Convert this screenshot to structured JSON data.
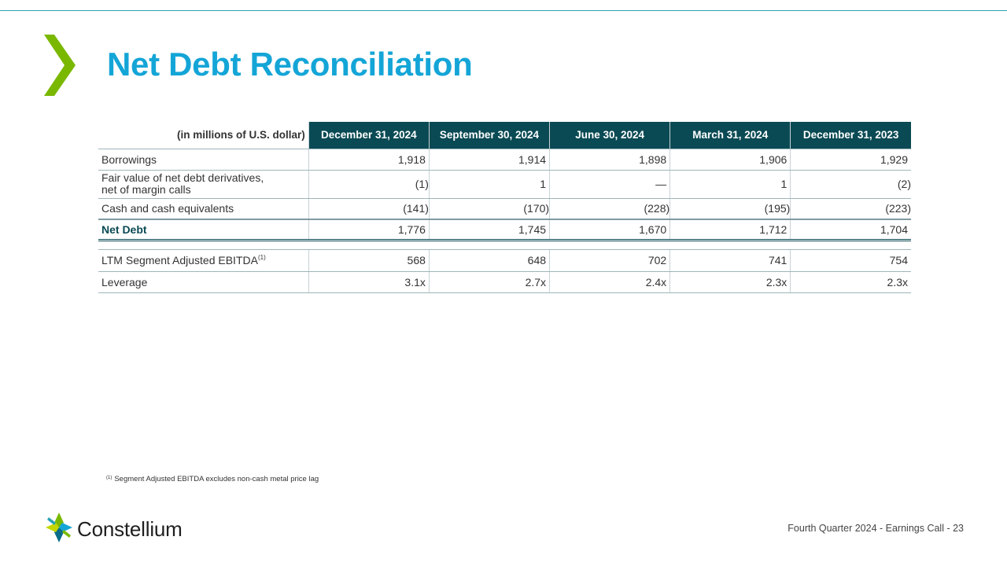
{
  "slide": {
    "title": "Net Debt Reconciliation",
    "accent_color": "#14a5d7",
    "header_fill_color": "#0a4a54",
    "chevron_color": "#7ab800"
  },
  "table": {
    "unit_label": "(in millions of U.S. dollar)",
    "columns": [
      "December 31, 2024",
      "September 30, 2024",
      "June 30, 2024",
      "March 31, 2024",
      "December 31, 2023"
    ],
    "rows": [
      {
        "label": "Borrowings",
        "values": [
          "1,918",
          "1,914",
          "1,898",
          "1,906",
          "1,929"
        ]
      },
      {
        "label_line1": "Fair value of net debt derivatives,",
        "label_line2": "net of margin calls",
        "values": [
          "(1)",
          "1",
          "—",
          "1",
          "(2)"
        ]
      },
      {
        "label": "Cash and cash equivalents",
        "values": [
          "(141)",
          "(170)",
          "(228)",
          "(195)",
          "(223)"
        ]
      },
      {
        "label": "Net Debt",
        "values": [
          "1,776",
          "1,745",
          "1,670",
          "1,712",
          "1,704"
        ]
      },
      {
        "label": "LTM Segment Adjusted EBITDA",
        "footnote_marker": "(1)",
        "values": [
          "568",
          "648",
          "702",
          "741",
          "754"
        ]
      },
      {
        "label": "Leverage",
        "values": [
          "3.1x",
          "2.7x",
          "2.4x",
          "2.3x",
          "2.3x"
        ]
      }
    ]
  },
  "footnote": {
    "marker": "(1)",
    "text": "Segment Adjusted EBITDA excludes non-cash metal price lag"
  },
  "footer": {
    "logo_text": "Constellium",
    "logo_icon": "constellium-pinwheel-icon",
    "page_label": "Fourth Quarter 2024 -  Earnings Call - 23"
  }
}
